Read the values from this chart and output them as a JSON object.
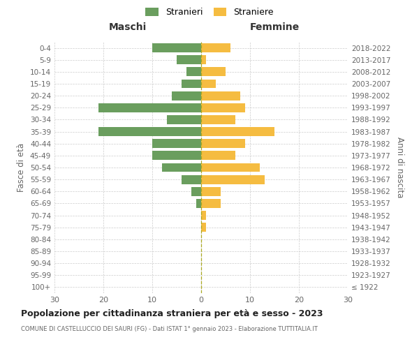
{
  "age_groups": [
    "100+",
    "95-99",
    "90-94",
    "85-89",
    "80-84",
    "75-79",
    "70-74",
    "65-69",
    "60-64",
    "55-59",
    "50-54",
    "45-49",
    "40-44",
    "35-39",
    "30-34",
    "25-29",
    "20-24",
    "15-19",
    "10-14",
    "5-9",
    "0-4"
  ],
  "birth_years": [
    "≤ 1922",
    "1923-1927",
    "1928-1932",
    "1933-1937",
    "1938-1942",
    "1943-1947",
    "1948-1952",
    "1953-1957",
    "1958-1962",
    "1963-1967",
    "1968-1972",
    "1973-1977",
    "1978-1982",
    "1983-1987",
    "1988-1992",
    "1993-1997",
    "1998-2002",
    "2003-2007",
    "2008-2012",
    "2013-2017",
    "2018-2022"
  ],
  "males": [
    0,
    0,
    0,
    0,
    0,
    0,
    0,
    1,
    2,
    4,
    8,
    10,
    10,
    21,
    7,
    21,
    6,
    4,
    3,
    5,
    10
  ],
  "females": [
    0,
    0,
    0,
    0,
    0,
    1,
    1,
    4,
    4,
    13,
    12,
    7,
    9,
    15,
    7,
    9,
    8,
    3,
    5,
    1,
    6
  ],
  "male_color": "#6a9e5e",
  "female_color": "#f5bc41",
  "male_label": "Stranieri",
  "female_label": "Straniere",
  "title": "Popolazione per cittadinanza straniera per età e sesso - 2023",
  "subtitle": "COMUNE DI CASTELLUCCIO DEI SAURI (FG) - Dati ISTAT 1° gennaio 2023 - Elaborazione TUTTITALIA.IT",
  "left_header": "Maschi",
  "right_header": "Femmine",
  "left_yaxis_label": "Fasce di età",
  "right_yaxis_label": "Anni di nascita",
  "xlim": 30,
  "background_color": "#ffffff",
  "grid_color": "#cccccc"
}
